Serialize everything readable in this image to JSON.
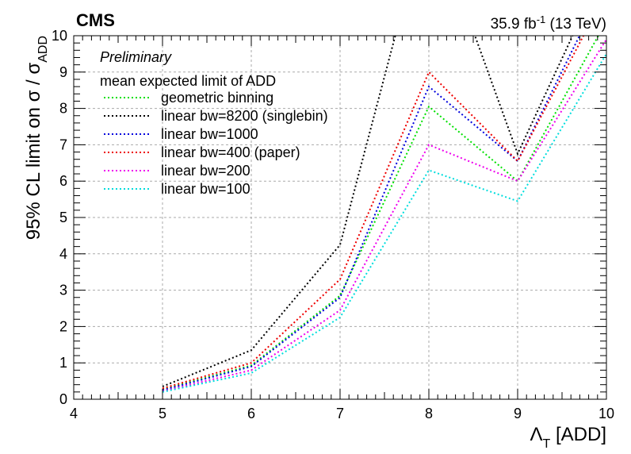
{
  "header": {
    "experiment": "CMS",
    "lumi_main": "35.9 fb",
    "lumi_exp": "-1",
    "lumi_rest": " (13 TeV)"
  },
  "chart_data": {
    "type": "line",
    "preliminary": "Preliminary",
    "legend_title": "mean expected limit of ADD",
    "legend_placement": "top-left",
    "ylabel_main": "95% CL limit on σ / σ",
    "ylabel_sub": "ADD",
    "xlabel_main": "Λ",
    "xlabel_sub": "T",
    "xlabel_rest": " [ADD]",
    "xlim": [
      4,
      10
    ],
    "ylim": [
      0,
      10
    ],
    "x_ticks": [
      4,
      5,
      6,
      7,
      8,
      9,
      10
    ],
    "y_ticks": [
      0,
      1,
      2,
      3,
      4,
      5,
      6,
      7,
      8,
      9,
      10
    ],
    "grid": true,
    "line_style": "dotted",
    "series": [
      {
        "name": "geometric binning",
        "color": "#00e000",
        "x": [
          5,
          6,
          7,
          8,
          9,
          10
        ],
        "y": [
          0.27,
          0.93,
          2.85,
          8.05,
          6.0,
          10.4
        ]
      },
      {
        "name": "linear bw=8200 (singlebin)",
        "color": "#000000",
        "x": [
          5,
          6,
          7,
          8,
          9,
          10
        ],
        "y": [
          0.35,
          1.35,
          4.25,
          13.5,
          6.75,
          12.0
        ]
      },
      {
        "name": "linear bw=1000",
        "color": "#0000dd",
        "x": [
          5,
          6,
          7,
          8,
          9,
          10
        ],
        "y": [
          0.25,
          0.9,
          2.8,
          8.6,
          6.55,
          11.5
        ]
      },
      {
        "name": "linear bw=400 (paper)",
        "color": "#ee0000",
        "x": [
          5,
          6,
          7,
          8,
          9,
          10
        ],
        "y": [
          0.3,
          1.0,
          3.3,
          9.0,
          6.55,
          11.2
        ]
      },
      {
        "name": "linear bw=200",
        "color": "#ee00ee",
        "x": [
          5,
          6,
          7,
          8,
          9,
          10
        ],
        "y": [
          0.22,
          0.8,
          2.45,
          7.0,
          6.0,
          9.9
        ]
      },
      {
        "name": "linear bw=100",
        "color": "#00dddd",
        "x": [
          5,
          6,
          7,
          8,
          9,
          10
        ],
        "y": [
          0.2,
          0.72,
          2.25,
          6.3,
          5.45,
          9.5
        ]
      }
    ]
  }
}
